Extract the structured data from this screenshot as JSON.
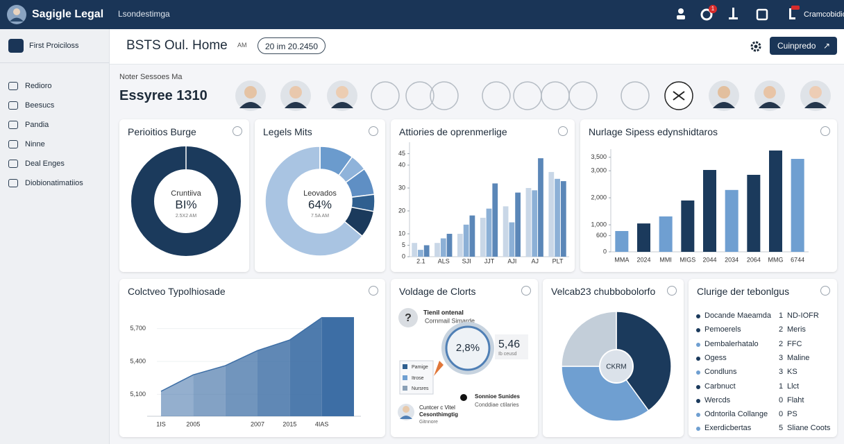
{
  "topbar": {
    "brand": "Sagigle Legal",
    "nav_title": "Lsondestimga",
    "badge": "1",
    "user": "Cramcobidio"
  },
  "sidebar": {
    "first_item": "First Proiciloss",
    "items": [
      "Redioro",
      "Beesucs",
      "Pandia",
      "Ninne",
      "Deal Enges",
      "Diobionatimatiios"
    ]
  },
  "header": {
    "title": "BSTS Oul. Home",
    "tag": "AM",
    "date": "20 im 20.2450",
    "button": "Cuinpredo"
  },
  "section": {
    "subtitle": "Noter Sessoes Ma",
    "title": "Essyree 1310"
  },
  "chart_data": [
    {
      "type": "donut",
      "title": "Perioitios Burge",
      "center_label": "Cruntiiva",
      "center_value": "BI%",
      "center_sub": "2.5X2 AM",
      "values": [
        100
      ],
      "colors": [
        "#1b3a5c"
      ]
    },
    {
      "type": "donut",
      "title": "Legels Mits",
      "center_label": "Leovados",
      "center_value": "64%",
      "center_sub": "7.5A AM",
      "values": [
        10,
        5,
        8,
        5,
        8,
        64
      ],
      "colors": [
        "#6b9bcd",
        "#8fb3da",
        "#5f8fc4",
        "#2f5f8f",
        "#1b3a5c",
        "#a9c4e2"
      ]
    },
    {
      "type": "bar",
      "title": "Attiories de oprenmerlige",
      "categories": [
        "2.1",
        "ALS",
        "SJI",
        "JJT",
        "AJI",
        "AJ",
        "PLT"
      ],
      "series": [
        {
          "color": "#c9d7e7",
          "values": [
            6,
            6,
            10,
            17,
            22,
            30,
            37
          ]
        },
        {
          "color": "#8cb0d6",
          "values": [
            3,
            8,
            14,
            21,
            15,
            29,
            34
          ]
        },
        {
          "color": "#5b87b8",
          "values": [
            5,
            10,
            18,
            32,
            28,
            43,
            33
          ]
        }
      ],
      "ylim": [
        0,
        50
      ],
      "yticks": [
        0,
        5,
        10,
        20,
        30,
        40,
        45
      ]
    },
    {
      "type": "bar",
      "title": "Nurlage Sipess edynshidtaros",
      "categories": [
        "MMA",
        "2024",
        "MMI",
        "MIGS",
        "2044",
        "2034",
        "2064",
        "MMG",
        "6744"
      ],
      "values": [
        770,
        1050,
        1310,
        1900,
        3030,
        2290,
        2850,
        3750,
        3440
      ],
      "colors": [
        "#6f9fd1",
        "#1b3a5c",
        "#6f9fd1",
        "#1b3a5c",
        "#1b3a5c",
        "#6f9fd1",
        "#1b3a5c",
        "#1b3a5c",
        "#6f9fd1"
      ],
      "ylim": [
        0,
        3800
      ],
      "yticks": [
        0,
        600,
        {
          "value": 1000,
          "label": "1,000"
        },
        {
          "value": 2000,
          "label": "2,000"
        },
        {
          "value": 3000,
          "label": "3,000"
        },
        {
          "value": 3500,
          "label": "3,500"
        }
      ]
    },
    {
      "type": "area",
      "title": "Colctveo Typolhiosade",
      "categories": [
        "1IS",
        "2005",
        null,
        "2007",
        "2015",
        "4IAS",
        null
      ],
      "values": [
        5128,
        5278,
        5362,
        5500,
        5596,
        5800,
        5800
      ],
      "color": "#3d6ea5",
      "ylim": [
        4900,
        5850
      ],
      "yticks": [
        {
          "value": 5100,
          "label": "5,100"
        },
        {
          "value": 5400,
          "label": "5,400"
        },
        {
          "value": 5700,
          "label": "5,700"
        }
      ]
    },
    {
      "type": "pie",
      "title": "Velcab23 chubbobolorfo",
      "center_label": "CKRM",
      "values": [
        40,
        35,
        25
      ],
      "colors": [
        "#1b3a5c",
        "#6f9fd1",
        "#c3ced9"
      ]
    }
  ],
  "contact_card": {
    "title": "Voldage de Clorts",
    "question_title": "Tienil ontenal",
    "question_sub": "Cornmail Simarde",
    "ring_value": "2,8%",
    "stat_value": "5,46",
    "stat_sub": "Ib ceusd",
    "legend": [
      "Pamige",
      "Itrose",
      "Nursres"
    ],
    "note_title": "Sonnioe Sunides",
    "note_sub": "Conddiae ctilaries",
    "person": [
      "Cuntcer c Vitel",
      "Cesonthimgtig",
      "Gitnnore"
    ]
  },
  "list_card": {
    "title": "Clurige der tebonlgus",
    "items": [
      {
        "label": "Docande Maeamda",
        "count": 1,
        "text": "ND-IOFR",
        "color": "#1b3a5c"
      },
      {
        "label": "Pemoerels",
        "count": 2,
        "text": "Meris",
        "color": "#1b3a5c"
      },
      {
        "label": "Dembalerhatalo",
        "count": 2,
        "text": "FFC",
        "color": "#6f9fd1"
      },
      {
        "label": "Ogess",
        "count": 3,
        "text": "Maline",
        "color": "#1b3a5c"
      },
      {
        "label": "Condluns",
        "count": 3,
        "text": "KS",
        "color": "#6f9fd1"
      },
      {
        "label": "Carbnuct",
        "count": 1,
        "text": "Llct",
        "color": "#1b3a5c"
      },
      {
        "label": "Wercds",
        "count": 0,
        "text": "Flaht",
        "color": "#1b3a5c"
      },
      {
        "label": "Odntorila Collange",
        "count": 0,
        "text": "PS",
        "color": "#6f9fd1"
      },
      {
        "label": "Exerdicbertas",
        "count": 5,
        "text": "Sliane Coots",
        "color": "#6f9fd1"
      }
    ]
  }
}
